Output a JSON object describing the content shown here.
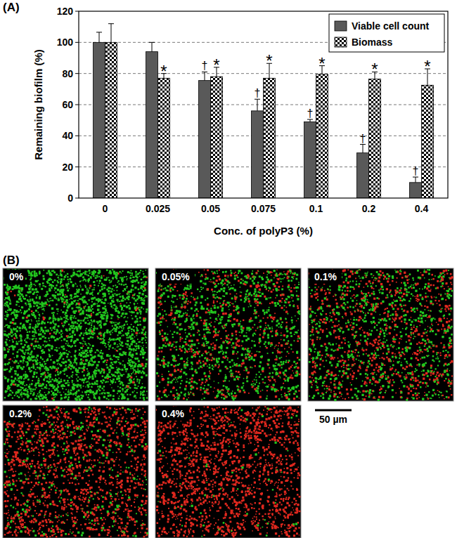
{
  "chart_data": {
    "type": "bar",
    "panel_label": "(A)",
    "x_label": "Conc. of polyP3 (%)",
    "y_label": "Remaining biofilm (%)",
    "categories": [
      "0",
      "0.025",
      "0.05",
      "0.075",
      "0.1",
      "0.2",
      "0.4"
    ],
    "series": [
      {
        "name": "Viable cell count",
        "color": "#595959",
        "values": [
          100,
          94,
          75.5,
          56,
          49,
          29,
          10
        ],
        "errors": [
          6.5,
          6,
          5.5,
          7.5,
          1.5,
          5.5,
          3.5
        ],
        "significance": [
          null,
          null,
          "†",
          "†",
          "†",
          "†",
          "†"
        ]
      },
      {
        "name": "Biomass",
        "color": "#000000",
        "values": [
          100,
          77,
          78,
          77,
          79.5,
          76.5,
          72.5
        ],
        "errors": [
          12,
          3,
          6,
          9.5,
          5.5,
          4.5,
          10.5
        ],
        "significance": [
          null,
          "*",
          "*",
          "*",
          "*",
          "*",
          "*"
        ]
      }
    ],
    "ylim": [
      0,
      120
    ],
    "yticks": [
      0,
      20,
      40,
      60,
      80,
      100,
      120
    ],
    "grid": true,
    "legend": "top-right"
  },
  "panel_b": {
    "label": "(B)",
    "images": [
      {
        "label": "0%"
      },
      {
        "label": "0.05%"
      },
      {
        "label": "0.1%"
      },
      {
        "label": "0.2%"
      },
      {
        "label": "0.4%"
      }
    ],
    "scale_bar": "50 µm"
  }
}
